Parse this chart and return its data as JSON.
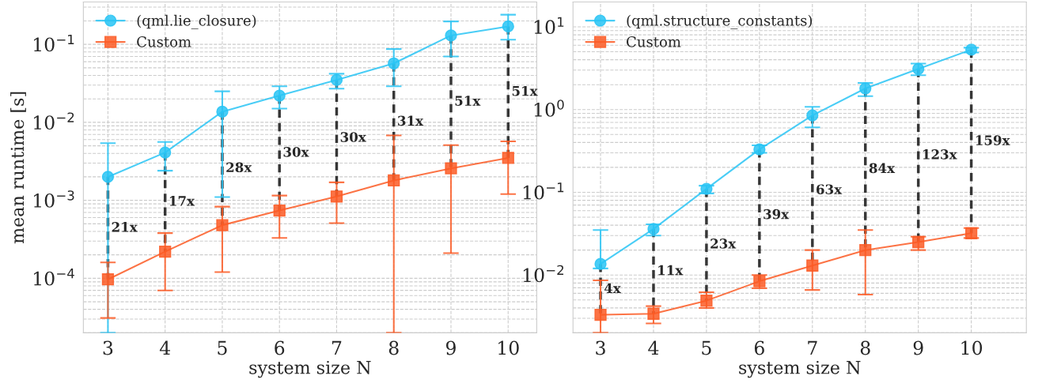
{
  "chart_data": [
    {
      "type": "line",
      "xlabel": "system size N",
      "ylabel": "mean runtime [s]",
      "log": "y",
      "grid": true,
      "legend": "top left",
      "line_style": "solid",
      "x": [
        3,
        4,
        5,
        6,
        7,
        8,
        9,
        10
      ],
      "xlim": [
        2.57,
        10.5
      ],
      "xticks": [
        3,
        4,
        5,
        6,
        7,
        8,
        9,
        10
      ],
      "ylim": [
        2e-05,
        0.35
      ],
      "yticks": [
        {
          "value": 0.0001,
          "label": "10$^{−4}$"
        },
        {
          "value": 0.001,
          "label": "10$^{−3}$"
        },
        {
          "value": 0.01,
          "label": "10$^{−2}$"
        },
        {
          "value": 0.1,
          "label": "10$^{−1}$"
        }
      ],
      "series": [
        {
          "name": "(qml.lie_closure)",
          "color": "#29c4f5",
          "marker": "circle",
          "values": [
            0.002,
            0.0041,
            0.0137,
            0.022,
            0.035,
            0.057,
            0.13,
            0.17
          ],
          "errors": [
            [
              2e-05,
              0.0054
            ],
            [
              0.0024,
              0.0056
            ],
            [
              0.0011,
              0.025
            ],
            [
              0.015,
              0.029
            ],
            [
              0.027,
              0.042
            ],
            [
              0.029,
              0.087
            ],
            [
              0.07,
              0.197
            ],
            [
              0.115,
              0.24
            ]
          ]
        },
        {
          "name": "Custom",
          "color": "#fc5a24",
          "marker": "square",
          "values": [
            9.7e-05,
            0.00022,
            0.00048,
            0.00074,
            0.00112,
            0.0018,
            0.00257,
            0.0035
          ],
          "errors": [
            [
              3.1e-05,
              0.00016
            ],
            [
              7e-05,
              0.00038
            ],
            [
              0.00012,
              0.00083
            ],
            [
              0.00033,
              0.00115
            ],
            [
              0.00051,
              0.0017
            ],
            [
              2e-05,
              0.0068
            ],
            [
              0.00021,
              0.0051
            ],
            [
              0.0012,
              0.0057
            ]
          ]
        }
      ],
      "annotations": [
        "21x",
        "17x",
        "28x",
        "30x",
        "30x",
        "31x",
        "51x",
        "51x"
      ]
    },
    {
      "type": "line",
      "xlabel": "system size N",
      "log": "y",
      "grid": true,
      "legend": "top left",
      "line_style": "solid",
      "x": [
        3,
        4,
        5,
        6,
        7,
        8,
        9,
        10
      ],
      "xlim": [
        2.48,
        11.04
      ],
      "xticks": [
        3,
        4,
        5,
        6,
        7,
        8,
        9,
        10
      ],
      "ylim": [
        0.002,
        20
      ],
      "yticks": [
        {
          "value": 0.01,
          "label": "10$^{−2}$"
        },
        {
          "value": 0.1,
          "label": "10$^{−1}$"
        },
        {
          "value": 1,
          "label": "10$^{0}$"
        },
        {
          "value": 10,
          "label": "10$^{1}$"
        }
      ],
      "series": [
        {
          "name": "(qml.structure_constants)",
          "color": "#29c4f5",
          "marker": "circle",
          "values": [
            0.0136,
            0.036,
            0.11,
            0.33,
            0.85,
            1.8,
            3.1,
            5.3
          ],
          "errors": [
            [
              0.012,
              0.035
            ],
            [
              0.03,
              0.041
            ],
            [
              0.097,
              0.12
            ],
            [
              0.3,
              0.37
            ],
            [
              0.61,
              1.08
            ],
            [
              1.45,
              2.1
            ],
            [
              2.6,
              3.6
            ],
            [
              4.9,
              5.6
            ]
          ]
        },
        {
          "name": "Custom",
          "color": "#fc5a24",
          "marker": "square",
          "values": [
            0.0033,
            0.0034,
            0.0049,
            0.0084,
            0.013,
            0.02,
            0.025,
            0.032
          ],
          "errors": [
            [
              0.002,
              0.0086
            ],
            [
              0.0026,
              0.0042
            ],
            [
              0.004,
              0.0062
            ],
            [
              0.0069,
              0.01
            ],
            [
              0.0066,
              0.02
            ],
            [
              0.0058,
              0.035
            ],
            [
              0.02,
              0.029
            ],
            [
              0.028,
              0.037
            ]
          ]
        }
      ],
      "annotations": [
        "4x",
        "11x",
        "23x",
        "39x",
        "63x",
        "84x",
        "123x",
        "159x"
      ]
    }
  ]
}
